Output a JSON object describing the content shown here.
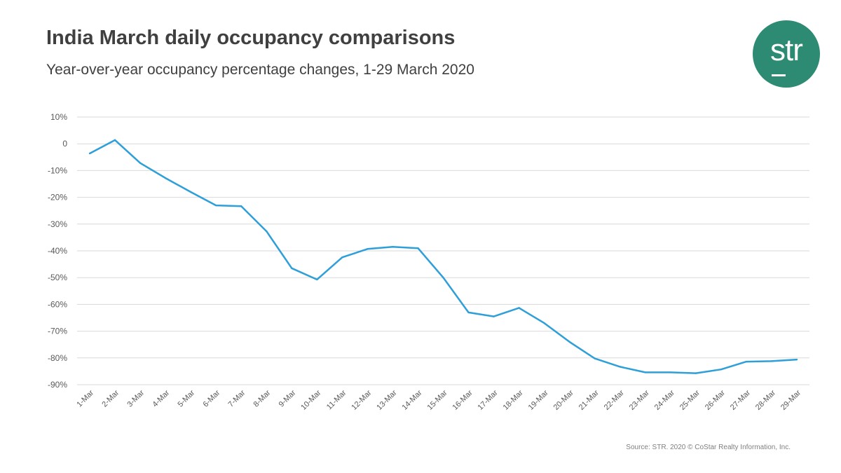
{
  "header": {
    "title": "India March daily occupancy comparisons",
    "subtitle": "Year-over-year occupancy percentage changes, 1-29 March 2020"
  },
  "logo": {
    "text": "str",
    "color": "#2e8b73"
  },
  "source": "Source: STR. 2020 © CoStar Realty Information, Inc.",
  "chart_data": {
    "type": "line",
    "title": "India March daily occupancy comparisons",
    "subtitle": "Year-over-year occupancy percentage changes, 1-29 March 2020",
    "xlabel": "",
    "ylabel": "",
    "ylim": [
      -90,
      10
    ],
    "yticks": [
      10,
      0,
      -10,
      -20,
      -30,
      -40,
      -50,
      -60,
      -70,
      -80,
      -90
    ],
    "ytick_labels": [
      "10%",
      "0",
      "-10%",
      "-20%",
      "-30%",
      "-40%",
      "-50%",
      "-60%",
      "-70%",
      "-80%",
      "-90%"
    ],
    "grid": true,
    "legend": "none",
    "categories": [
      "1-Mar",
      "2-Mar",
      "3-Mar",
      "4-Mar",
      "5-Mar",
      "6-Mar",
      "7-Mar",
      "8-Mar",
      "9-Mar",
      "10-Mar",
      "11-Mar",
      "12-Mar",
      "13-Mar",
      "14-Mar",
      "15-Mar",
      "16-Mar",
      "17-Mar",
      "18-Mar",
      "19-Mar",
      "20-Mar",
      "21-Mar",
      "22-Mar",
      "23-Mar",
      "24-Mar",
      "25-Mar",
      "26-Mar",
      "27-Mar",
      "28-Mar",
      "29-Mar"
    ],
    "series": [
      {
        "color": "#2e9fd8",
        "values": [
          -3.6,
          1.4,
          -7.2,
          -12.8,
          -18.0,
          -23.0,
          -23.3,
          -32.7,
          -46.5,
          -50.7,
          -42.4,
          -39.3,
          -38.5,
          -39.0,
          -50.0,
          -63.0,
          -64.5,
          -61.3,
          -67.0,
          -74.0,
          -80.2,
          -83.3,
          -85.4,
          -85.4,
          -85.7,
          -84.3,
          -81.4,
          -81.2,
          -80.6
        ]
      }
    ]
  }
}
